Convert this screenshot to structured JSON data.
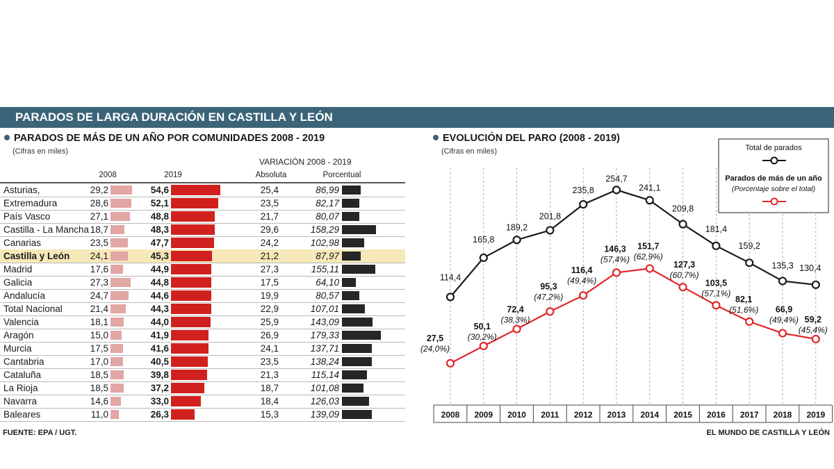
{
  "banner": "PARADOS DE LARGA DURACIÓN EN CASTILLA Y LEÓN",
  "left": {
    "title": "PARADOS DE MÁS DE UN AÑO POR COMUNIDADES 2008 - 2019",
    "subtitle": "(Cifras en miles)",
    "variation_header": "VARIACIÓN 2008 - 2019",
    "columns": {
      "c2008": "2008",
      "c2019": "2019",
      "abs": "Absoluta",
      "pct": "Porcentual"
    },
    "rows": [
      {
        "name": "Asturias,",
        "v2008": "29,2",
        "n2008": 29.2,
        "v2019": "54,6",
        "n2019": 54.6,
        "abs": "25,4",
        "pct": "86,99",
        "npct": 86.99
      },
      {
        "name": "Extremadura",
        "v2008": "28,6",
        "n2008": 28.6,
        "v2019": "52,1",
        "n2019": 52.1,
        "abs": "23,5",
        "pct": "82,17",
        "npct": 82.17
      },
      {
        "name": "País Vasco",
        "v2008": "27,1",
        "n2008": 27.1,
        "v2019": "48,8",
        "n2019": 48.8,
        "abs": "21,7",
        "pct": "80,07",
        "npct": 80.07
      },
      {
        "name": "Castilla - La Mancha",
        "v2008": "18,7",
        "n2008": 18.7,
        "v2019": "48,3",
        "n2019": 48.3,
        "abs": "29,6",
        "pct": "158,29",
        "npct": 158.29
      },
      {
        "name": "Canarias",
        "v2008": "23,5",
        "n2008": 23.5,
        "v2019": "47,7",
        "n2019": 47.7,
        "abs": "24,2",
        "pct": "102,98",
        "npct": 102.98
      },
      {
        "name": "Castilla y León",
        "v2008": "24,1",
        "n2008": 24.1,
        "v2019": "45,3",
        "n2019": 45.3,
        "abs": "21,2",
        "pct": "87,97",
        "npct": 87.97,
        "highlight": true
      },
      {
        "name": "Madrid",
        "v2008": "17,6",
        "n2008": 17.6,
        "v2019": "44,9",
        "n2019": 44.9,
        "abs": "27,3",
        "pct": "155,11",
        "npct": 155.11
      },
      {
        "name": "Galicia",
        "v2008": "27,3",
        "n2008": 27.3,
        "v2019": "44,8",
        "n2019": 44.8,
        "abs": "17,5",
        "pct": "64,10",
        "npct": 64.1
      },
      {
        "name": "Andalucía",
        "v2008": "24,7",
        "n2008": 24.7,
        "v2019": "44,6",
        "n2019": 44.6,
        "abs": "19,9",
        "pct": "80,57",
        "npct": 80.57
      },
      {
        "name": "Total Nacional",
        "v2008": "21,4",
        "n2008": 21.4,
        "v2019": "44,3",
        "n2019": 44.3,
        "abs": "22,9",
        "pct": "107,01",
        "npct": 107.01
      },
      {
        "name": "Valencia",
        "v2008": "18,1",
        "n2008": 18.1,
        "v2019": "44,0",
        "n2019": 44.0,
        "abs": "25,9",
        "pct": "143,09",
        "npct": 143.09
      },
      {
        "name": "Aragón",
        "v2008": "15,0",
        "n2008": 15.0,
        "v2019": "41,9",
        "n2019": 41.9,
        "abs": "26,9",
        "pct": "179,33",
        "npct": 179.33
      },
      {
        "name": "Murcia",
        "v2008": "17,5",
        "n2008": 17.5,
        "v2019": "41,6",
        "n2019": 41.6,
        "abs": "24,1",
        "pct": "137,71",
        "npct": 137.71
      },
      {
        "name": "Cantabria",
        "v2008": "17,0",
        "n2008": 17.0,
        "v2019": "40,5",
        "n2019": 40.5,
        "abs": "23,5",
        "pct": "138,24",
        "npct": 138.24
      },
      {
        "name": "Cataluña",
        "v2008": "18,5",
        "n2008": 18.5,
        "v2019": "39,8",
        "n2019": 39.8,
        "abs": "21,3",
        "pct": "115,14",
        "npct": 115.14
      },
      {
        "name": "La Rioja",
        "v2008": "18,5",
        "n2008": 18.5,
        "v2019": "37,2",
        "n2019": 37.2,
        "abs": "18,7",
        "pct": "101,08",
        "npct": 101.08
      },
      {
        "name": "Navarra",
        "v2008": "14,6",
        "n2008": 14.6,
        "v2019": "33,0",
        "n2019": 33.0,
        "abs": "18,4",
        "pct": "126,03",
        "npct": 126.03
      },
      {
        "name": "Baleares",
        "v2008": "11,0",
        "n2008": 11.0,
        "v2019": "26,3",
        "n2019": 26.3,
        "abs": "15,3",
        "pct": "139,09",
        "npct": 139.09
      }
    ]
  },
  "right": {
    "title": "EVOLUCIÓN DEL PARO (2008 - 2019)",
    "subtitle": "(Cifras en miles)",
    "legend": {
      "total": "Total de parados",
      "long": "Parados de más de un año",
      "long_sub": "(Porcentaje sobre el total)"
    }
  },
  "footer": {
    "source": "FUENTE:  EPA / UGT.",
    "credit": "EL MUNDO DE CASTILLA Y LEÓN"
  },
  "colors": {
    "banner": "#3b6478",
    "bar2008": "#e2a6a4",
    "bar2019": "#d1211e",
    "barpct": "#262626",
    "highlight": "#f6e8b8",
    "line_total": "#1a1a1a",
    "line_long": "#e0262a"
  },
  "chart_data": [
    {
      "type": "table",
      "title": "PARADOS DE MÁS DE UN AÑO POR COMUNIDADES 2008 - 2019",
      "columns": [
        "2008",
        "2019",
        "Variación absoluta",
        "Variación porcentual"
      ],
      "categories": [
        "Asturias,",
        "Extremadura",
        "País Vasco",
        "Castilla - La Mancha",
        "Canarias",
        "Castilla y León",
        "Madrid",
        "Galicia",
        "Andalucía",
        "Total Nacional",
        "Valencia",
        "Aragón",
        "Murcia",
        "Cantabria",
        "Cataluña",
        "La Rioja",
        "Navarra",
        "Baleares"
      ],
      "series": [
        {
          "name": "2008",
          "values": [
            29.2,
            28.6,
            27.1,
            18.7,
            23.5,
            24.1,
            17.6,
            27.3,
            24.7,
            21.4,
            18.1,
            15.0,
            17.5,
            17.0,
            18.5,
            18.5,
            14.6,
            11.0
          ]
        },
        {
          "name": "2019",
          "values": [
            54.6,
            52.1,
            48.8,
            48.3,
            47.7,
            45.3,
            44.9,
            44.8,
            44.6,
            44.3,
            44.0,
            41.9,
            41.6,
            40.5,
            39.8,
            37.2,
            33.0,
            26.3
          ]
        },
        {
          "name": "Absoluta",
          "values": [
            25.4,
            23.5,
            21.7,
            29.6,
            24.2,
            21.2,
            27.3,
            17.5,
            19.9,
            22.9,
            25.9,
            26.9,
            24.1,
            23.5,
            21.3,
            18.7,
            18.4,
            15.3
          ]
        },
        {
          "name": "Porcentual",
          "values": [
            86.99,
            82.17,
            80.07,
            158.29,
            102.98,
            87.97,
            155.11,
            64.1,
            80.57,
            107.01,
            143.09,
            179.33,
            137.71,
            138.24,
            115.14,
            101.08,
            126.03,
            139.09
          ]
        }
      ]
    },
    {
      "type": "line",
      "title": "EVOLUCIÓN DEL PARO (2008 - 2019)",
      "x": [
        "2008",
        "2009",
        "2010",
        "2011",
        "2012",
        "2013",
        "2014",
        "2015",
        "2016",
        "2017",
        "2018",
        "2019"
      ],
      "ylim": [
        0,
        260
      ],
      "series": [
        {
          "name": "Total de parados",
          "values": [
            114.4,
            165.8,
            189.2,
            201.8,
            235.8,
            254.7,
            241.1,
            209.8,
            181.4,
            159.2,
            135.3,
            130.4
          ],
          "labels": [
            "114,4",
            "165,8",
            "189,2",
            "201,8",
            "235,8",
            "254,7",
            "241,1",
            "209,8",
            "181,4",
            "159,2",
            "135,3",
            "130,4"
          ]
        },
        {
          "name": "Parados de más de un año",
          "values": [
            27.5,
            50.1,
            72.4,
            95.3,
            116.4,
            146.3,
            151.7,
            127.3,
            103.5,
            82.1,
            66.9,
            59.2
          ],
          "labels": [
            "27,5",
            "50,1",
            "72,4",
            "95,3",
            "116,4",
            "146,3",
            "151,7",
            "127,3",
            "103,5",
            "82,1",
            "66,9",
            "59,2"
          ],
          "pct_labels": [
            "(24,0%)",
            "(30,2%)",
            "(38,3%)",
            "(47,2%)",
            "(49,4%)",
            "(57,4%)",
            "(62,9%)",
            "(60,7%)",
            "(57,1%)",
            "(51,6%)",
            "(49,4%)",
            "(45,4%)"
          ]
        }
      ]
    }
  ]
}
